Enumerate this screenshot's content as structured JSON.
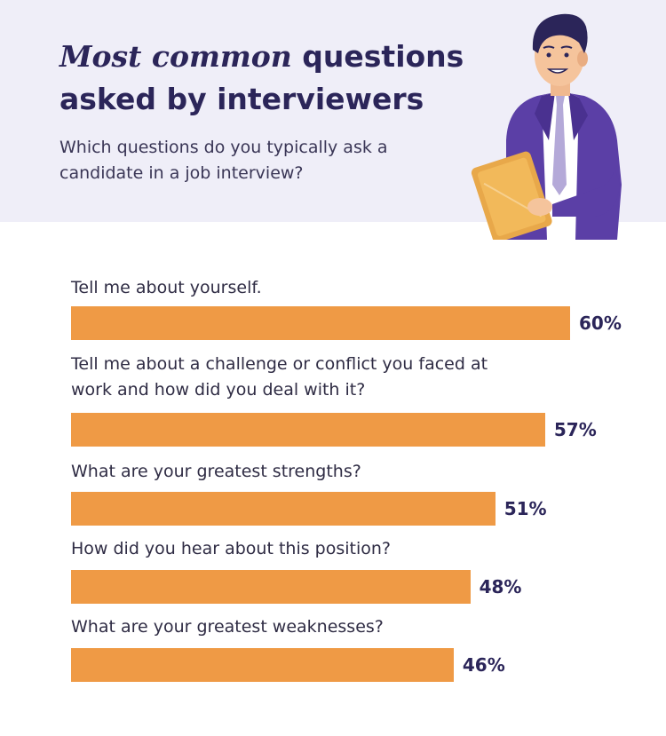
{
  "header": {
    "title_emphasis": "Most common",
    "title_rest": " questions asked by interviewers",
    "subtitle": "Which questions do you typically ask a candidate in a job interview?"
  },
  "colors": {
    "header_bg": "#efeef8",
    "bar": "#ef9a45",
    "title": "#2b2559"
  },
  "chart_data": {
    "type": "bar",
    "orientation": "horizontal",
    "categories": [
      "Tell me about yourself.",
      "Tell me about a challenge or conflict you faced at work and how did you deal with it?",
      "What are your greatest strengths?",
      "How did you hear about this position?",
      "What are your greatest weaknesses?"
    ],
    "values": [
      60,
      57,
      51,
      48,
      46
    ],
    "value_labels": [
      "60%",
      "57%",
      "51%",
      "48%",
      "46%"
    ],
    "unit": "%"
  }
}
